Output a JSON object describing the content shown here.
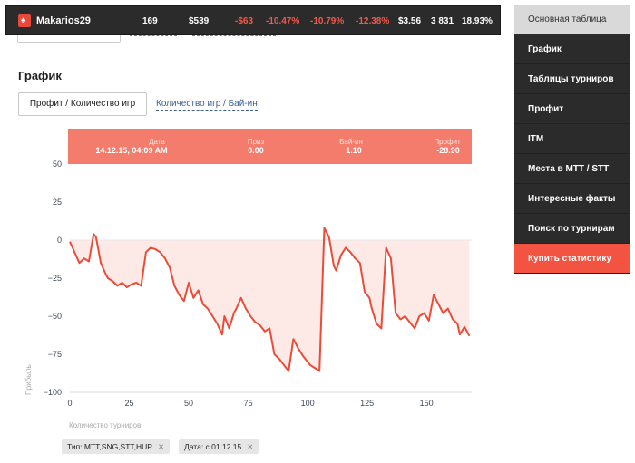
{
  "player": {
    "name": "Makarios29",
    "icon": "spade-icon"
  },
  "stats": [
    "169",
    "$539",
    "-$63",
    "-10.47%",
    "-10.79%",
    "-12.38%",
    "$3.56",
    "3 831",
    "18.93%"
  ],
  "nav": {
    "items": [
      "Основная таблица",
      "График",
      "Таблицы турниров",
      "Профит",
      "ITM",
      "Места в MTT / STT",
      "Интересные факты",
      "Поиск по турнирам",
      "Купить статистику"
    ],
    "active_index": 0
  },
  "section": {
    "title": "График",
    "toggle_active": "Профит / Количество игр",
    "toggle_link": "Количество игр / Бай-ин"
  },
  "tooltip": {
    "date_label": "Дата",
    "date_value": "14.12.15, 04:09 AM",
    "prize_label": "Приз",
    "prize_value": "0.00",
    "buyin_label": "Бай-ин",
    "buyin_value": "1.10",
    "profit_label": "Профит",
    "profit_value": "-28.90"
  },
  "filters": [
    {
      "label": "Тип: MTT,SNG,STT,HUP"
    },
    {
      "label": "Дата: с 01.12.15"
    }
  ],
  "colors": {
    "accent": "#f25441",
    "nav_bg": "#2b2b2b",
    "line": "#ea4c38",
    "area": "#fde9e6"
  },
  "chart_data": {
    "type": "area",
    "xlabel": "Количество турниров",
    "ylabel": "Прибыль",
    "xlim": [
      0,
      169
    ],
    "ylim": [
      -100,
      50
    ],
    "x_ticks": [
      0,
      25,
      50,
      75,
      100,
      125,
      150
    ],
    "y_ticks": [
      50,
      25,
      0,
      -25,
      -50,
      -75,
      -100
    ],
    "x": [
      0,
      2,
      4,
      6,
      8,
      10,
      11,
      13,
      15,
      16,
      18,
      20,
      22,
      24,
      25,
      26,
      28,
      30,
      32,
      34,
      36,
      38,
      40,
      42,
      44,
      46,
      48,
      50,
      52,
      54,
      56,
      58,
      60,
      62,
      64,
      65,
      67,
      69,
      70,
      72,
      74,
      76,
      78,
      80,
      82,
      84,
      86,
      88,
      90,
      92,
      94,
      96,
      98,
      100,
      101,
      103,
      105,
      107,
      109,
      111,
      112,
      114,
      116,
      118,
      120,
      122,
      124,
      126,
      127,
      129,
      131,
      133,
      135,
      137,
      139,
      141,
      143,
      145,
      147,
      149,
      151,
      153,
      155,
      157,
      159,
      161,
      163,
      164,
      166,
      168
    ],
    "y": [
      -1,
      -8,
      -15,
      -12,
      -14,
      4,
      2,
      -15,
      -22,
      -25,
      -27,
      -30,
      -28,
      -31,
      -30,
      -29,
      -28,
      -30,
      -8,
      -5,
      -6,
      -8,
      -12,
      -18,
      -30,
      -36,
      -40,
      -28,
      -38,
      -33,
      -42,
      -45,
      -50,
      -55,
      -62,
      -50,
      -58,
      -48,
      -45,
      -38,
      -45,
      -50,
      -54,
      -56,
      -60,
      -58,
      -75,
      -78,
      -82,
      -86,
      -65,
      -71,
      -76,
      -80,
      -82,
      -84,
      -86,
      8,
      2,
      -17,
      -20,
      -10,
      -5,
      -8,
      -12,
      -15,
      -34,
      -38,
      -45,
      -55,
      -58,
      -5,
      -12,
      -48,
      -52,
      -50,
      -54,
      -58,
      -50,
      -48,
      -53,
      -36,
      -42,
      -48,
      -45,
      -52,
      -55,
      -62,
      -57,
      -63
    ]
  }
}
